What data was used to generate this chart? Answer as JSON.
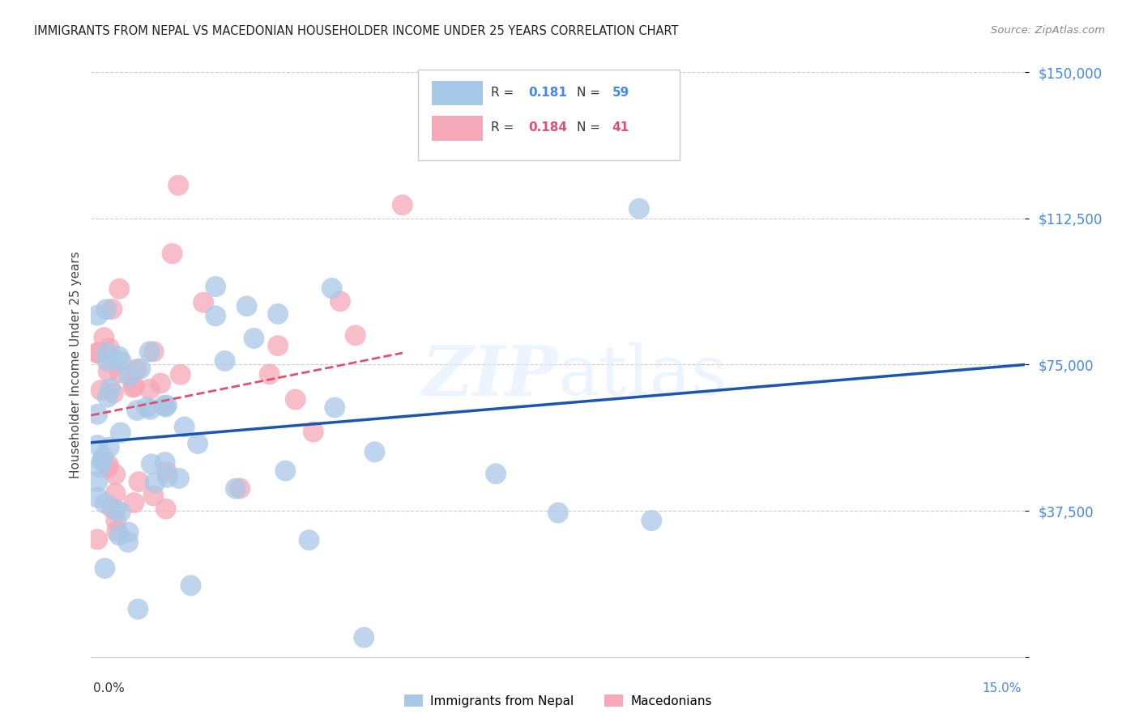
{
  "title": "IMMIGRANTS FROM NEPAL VS MACEDONIAN HOUSEHOLDER INCOME UNDER 25 YEARS CORRELATION CHART",
  "source": "Source: ZipAtlas.com",
  "ylabel": "Householder Income Under 25 years",
  "y_ticks": [
    0,
    37500,
    75000,
    112500,
    150000
  ],
  "y_tick_labels": [
    "",
    "$37,500",
    "$75,000",
    "$112,500",
    "$150,000"
  ],
  "xlim": [
    0.0,
    0.15
  ],
  "ylim": [
    0,
    150000
  ],
  "nepal_color": "#a8c8e8",
  "mace_color": "#f5a8b8",
  "nepal_line_color": "#1a56b0",
  "mace_line_color": "#e05070",
  "watermark": "ZIPAtlas",
  "nepal_R": 0.181,
  "nepal_N": 59,
  "mace_R": 0.184,
  "mace_N": 41,
  "nepal_line_x0": 0.0,
  "nepal_line_y0": 55000,
  "nepal_line_x1": 0.15,
  "nepal_line_y1": 75000,
  "mace_line_x0": 0.0,
  "mace_line_y0": 62000,
  "mace_line_x1": 0.05,
  "mace_line_y1": 78000
}
